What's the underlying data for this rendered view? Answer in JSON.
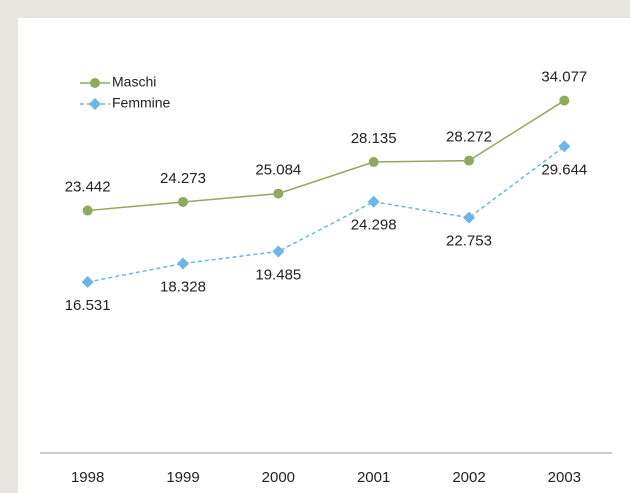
{
  "chart_data": {
    "type": "line",
    "categories": [
      "1998",
      "1999",
      "2000",
      "2001",
      "2002",
      "2003"
    ],
    "series": [
      {
        "name": "Maschi",
        "color": "#8faa5c",
        "values": [
          23.442,
          24.273,
          25.084,
          28.135,
          28.272,
          34.077
        ]
      },
      {
        "name": "Femmine",
        "color": "#6cb6e6",
        "values": [
          16.531,
          18.328,
          19.485,
          24.298,
          22.753,
          29.644
        ]
      }
    ],
    "ylim": [
      0,
      38
    ]
  }
}
